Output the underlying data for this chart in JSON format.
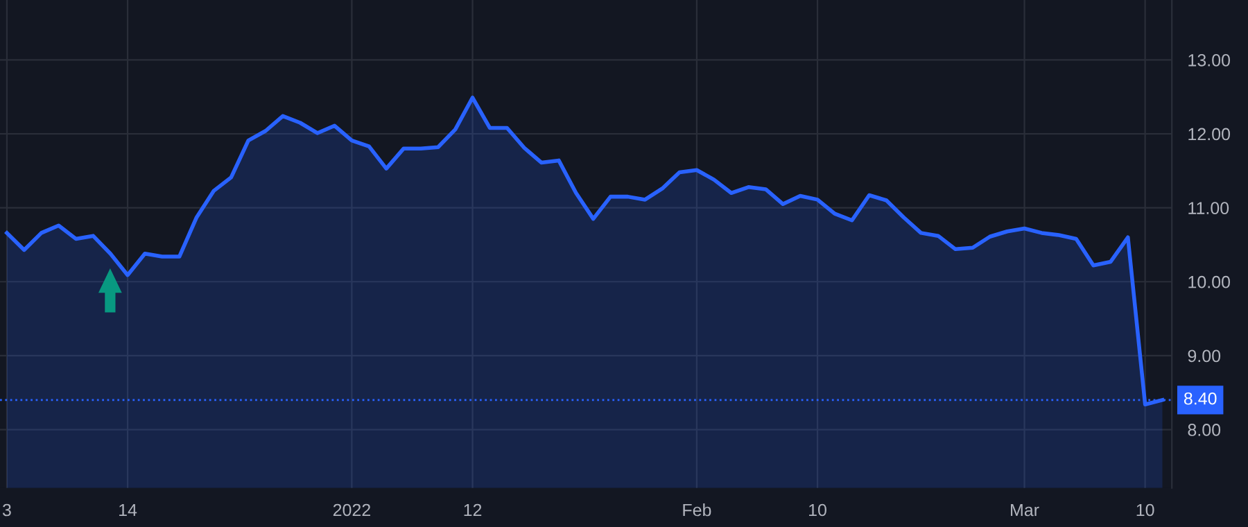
{
  "chart_data": {
    "type": "area",
    "categories": [
      "3",
      null,
      null,
      null,
      null,
      null,
      null,
      "14",
      null,
      null,
      null,
      null,
      null,
      null,
      null,
      null,
      null,
      null,
      null,
      null,
      "2022",
      null,
      null,
      null,
      null,
      null,
      null,
      "12",
      null,
      null,
      null,
      null,
      null,
      null,
      null,
      null,
      null,
      null,
      null,
      null,
      "Feb",
      null,
      null,
      null,
      null,
      null,
      null,
      "10",
      null,
      null,
      null,
      null,
      null,
      null,
      null,
      null,
      null,
      null,
      null,
      "Mar",
      null,
      null,
      null,
      null,
      null,
      null,
      "10",
      null
    ],
    "series": [
      {
        "color": "#2962ff",
        "values": [
          10.66,
          10.43,
          10.66,
          10.76,
          10.58,
          10.62,
          10.38,
          10.09,
          10.38,
          10.34,
          10.34,
          10.87,
          11.23,
          11.41,
          11.91,
          12.04,
          12.24,
          12.15,
          12.01,
          12.11,
          11.91,
          11.83,
          11.53,
          11.8,
          11.8,
          11.82,
          12.06,
          12.49,
          12.08,
          12.08,
          11.81,
          11.61,
          11.64,
          11.2,
          10.85,
          11.15,
          11.15,
          11.11,
          11.26,
          11.48,
          11.51,
          11.38,
          11.2,
          11.28,
          11.25,
          11.05,
          11.16,
          11.11,
          10.92,
          10.83,
          11.17,
          11.1,
          10.87,
          10.66,
          10.62,
          10.44,
          10.46,
          10.61,
          10.68,
          10.72,
          10.66,
          10.63,
          10.58,
          10.22,
          10.27,
          10.6,
          8.34,
          8.4
        ]
      }
    ],
    "ylim": [
      7.21,
      13.81
    ],
    "yticks": [
      {
        "value": 8,
        "label": "8.00"
      },
      {
        "value": 9,
        "label": "9.00"
      },
      {
        "value": 10,
        "label": "10.00"
      },
      {
        "value": 11,
        "label": "11.00"
      },
      {
        "value": 12,
        "label": "12.00"
      },
      {
        "value": 13,
        "label": "13.00"
      }
    ],
    "ref_lines": [
      {
        "axis": "y",
        "value": 8.4,
        "label": "8.40",
        "color": "#2962ff",
        "line_style": "dotted"
      }
    ],
    "grid": true
  }
}
